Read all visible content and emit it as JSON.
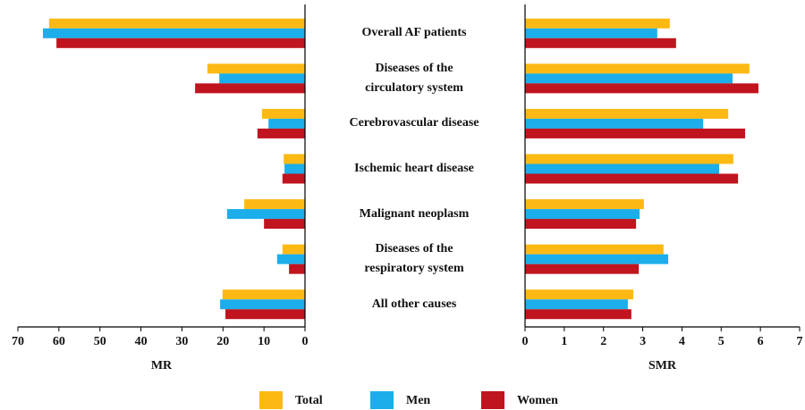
{
  "chart_data": [
    {
      "type": "bar",
      "orientation": "horizontal",
      "xlabel": "MR",
      "categories": [
        "Overall AF patients",
        "Diseases of the\ncirculatory system",
        "Cerebrovascular disease",
        "Ischemic heart disease",
        "Malignant neoplasm",
        "Diseases of the\nrespiratory system",
        "All other causes"
      ],
      "series": [
        {
          "name": "Total",
          "color": "#FDB913",
          "values": [
            62.4,
            23.8,
            10.5,
            5.2,
            14.8,
            5.5,
            20.1
          ]
        },
        {
          "name": "Men",
          "color": "#1BAEEA",
          "values": [
            63.9,
            20.9,
            8.9,
            5.0,
            19.0,
            6.8,
            20.7
          ]
        },
        {
          "name": "Women",
          "color": "#C0141F",
          "values": [
            60.6,
            26.8,
            11.6,
            5.5,
            10.0,
            3.9,
            19.4
          ]
        }
      ],
      "xlim": [
        70,
        0
      ],
      "xticks": [
        70,
        60,
        50,
        40,
        30,
        20,
        10,
        0
      ]
    },
    {
      "type": "bar",
      "orientation": "horizontal",
      "xlabel": "SMR",
      "series": [
        {
          "name": "Total",
          "color": "#FDB913",
          "values": [
            3.69,
            5.72,
            5.18,
            5.31,
            3.03,
            3.53,
            2.76
          ]
        },
        {
          "name": "Men",
          "color": "#1BAEEA",
          "values": [
            3.37,
            5.29,
            4.54,
            4.95,
            2.92,
            3.65,
            2.62
          ]
        },
        {
          "name": "Women",
          "color": "#C0141F",
          "values": [
            3.85,
            5.95,
            5.61,
            5.43,
            2.83,
            2.9,
            2.71
          ]
        }
      ],
      "xlim": [
        0,
        7
      ],
      "xticks": [
        0,
        1,
        2,
        3,
        4,
        5,
        6,
        7
      ]
    }
  ]
}
